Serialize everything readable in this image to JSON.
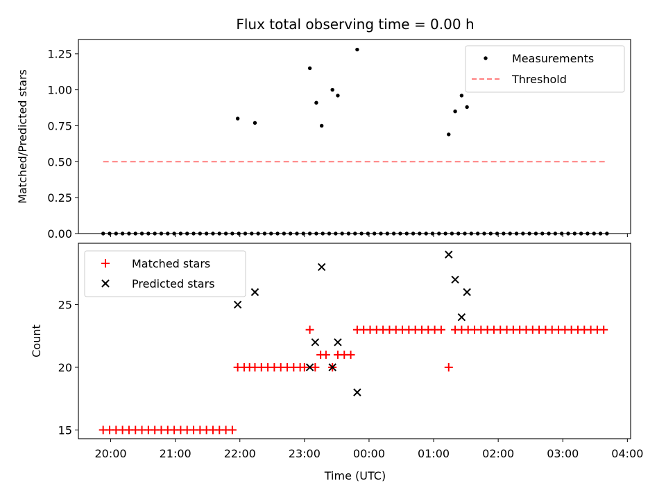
{
  "chart_data": [
    {
      "type": "scatter",
      "title": "Flux total observing time = 0.00 h",
      "ylabel": "Matched/Predicted stars",
      "xlabel": "",
      "ylim": [
        0,
        1.35
      ],
      "yticks": [
        "0.00",
        "0.25",
        "0.50",
        "0.75",
        "1.00",
        "1.25"
      ],
      "ytick_values": [
        0,
        0.25,
        0.5,
        0.75,
        1.0,
        1.25
      ],
      "grid": false,
      "legend_position": "top-right",
      "series": [
        {
          "name": "Measurements",
          "marker": "dot",
          "color": "#000000",
          "x": [
            "19:53",
            "19:59",
            "20:05",
            "20:11",
            "20:17",
            "20:23",
            "20:29",
            "20:35",
            "20:41",
            "20:47",
            "20:53",
            "20:59",
            "21:05",
            "21:11",
            "21:17",
            "21:23",
            "21:29",
            "21:35",
            "21:41",
            "21:47",
            "21:53",
            "21:59",
            "22:05",
            "22:11",
            "22:17",
            "22:23",
            "22:29",
            "22:35",
            "22:41",
            "22:47",
            "22:53",
            "22:59",
            "23:05",
            "23:11",
            "23:17",
            "23:23",
            "23:29",
            "23:35",
            "23:41",
            "23:47",
            "23:53",
            "23:59",
            "00:05",
            "00:11",
            "00:17",
            "00:23",
            "00:29",
            "00:35",
            "00:41",
            "00:47",
            "00:53",
            "00:59",
            "01:05",
            "01:11",
            "01:17",
            "01:23",
            "01:29",
            "01:35",
            "01:41",
            "01:47",
            "01:53",
            "01:59",
            "02:05",
            "02:11",
            "02:17",
            "02:23",
            "02:29",
            "02:35",
            "02:41",
            "02:47",
            "02:53",
            "02:59",
            "03:05",
            "03:11",
            "03:17",
            "03:23",
            "03:29",
            "03:35",
            "03:41",
            "21:58",
            "22:14",
            "23:05",
            "23:11",
            "23:16",
            "23:26",
            "23:31",
            "23:49",
            "01:14",
            "01:20",
            "01:26",
            "01:31"
          ],
          "y": [
            0,
            0,
            0,
            0,
            0,
            0,
            0,
            0,
            0,
            0,
            0,
            0,
            0,
            0,
            0,
            0,
            0,
            0,
            0,
            0,
            0,
            0,
            0,
            0,
            0,
            0,
            0,
            0,
            0,
            0,
            0,
            0,
            0,
            0,
            0,
            0,
            0,
            0,
            0,
            0,
            0,
            0,
            0,
            0,
            0,
            0,
            0,
            0,
            0,
            0,
            0,
            0,
            0,
            0,
            0,
            0,
            0,
            0,
            0,
            0,
            0,
            0,
            0,
            0,
            0,
            0,
            0,
            0,
            0,
            0,
            0,
            0,
            0,
            0,
            0,
            0,
            0,
            0,
            0,
            0.8,
            0.77,
            1.15,
            0.91,
            0.75,
            1.0,
            0.96,
            1.28,
            0.69,
            0.85,
            0.96,
            0.88
          ]
        },
        {
          "name": "Threshold",
          "style": "dashed",
          "color": "#ff7f7f",
          "x": [
            "19:53",
            "03:41"
          ],
          "y": [
            0.5,
            0.5
          ]
        }
      ]
    },
    {
      "type": "scatter",
      "title": "",
      "ylabel": "Count",
      "xlabel": "Time (UTC)",
      "ylim": [
        14.3,
        29.9
      ],
      "yticks": [
        "15",
        "20",
        "25"
      ],
      "ytick_values": [
        15,
        20,
        25
      ],
      "xticks": [
        "20:00",
        "21:00",
        "22:00",
        "23:00",
        "00:00",
        "01:00",
        "02:00",
        "03:00",
        "04:00"
      ],
      "xlim": [
        "19:30",
        "04:03"
      ],
      "grid": false,
      "legend_position": "top-left",
      "series": [
        {
          "name": "Matched stars",
          "marker": "plus",
          "color": "#ff0000",
          "x": [
            "19:53",
            "19:59",
            "20:05",
            "20:11",
            "20:17",
            "20:23",
            "20:29",
            "20:35",
            "20:41",
            "20:47",
            "20:53",
            "20:59",
            "21:05",
            "21:11",
            "21:17",
            "21:23",
            "21:29",
            "21:35",
            "21:41",
            "21:47",
            "21:53",
            "21:58",
            "22:04",
            "22:09",
            "22:14",
            "22:20",
            "22:26",
            "22:32",
            "22:38",
            "22:44",
            "22:50",
            "22:56",
            "23:00",
            "23:05",
            "23:10",
            "23:15",
            "23:20",
            "23:26",
            "23:31",
            "23:37",
            "23:43",
            "23:49",
            "23:55",
            "00:01",
            "00:07",
            "00:13",
            "00:19",
            "00:25",
            "00:31",
            "00:37",
            "00:43",
            "00:49",
            "00:55",
            "01:01",
            "01:07",
            "01:14",
            "01:20",
            "01:26",
            "01:32",
            "01:38",
            "01:44",
            "01:50",
            "01:56",
            "02:02",
            "02:08",
            "02:14",
            "02:20",
            "02:26",
            "02:32",
            "02:38",
            "02:44",
            "02:50",
            "02:56",
            "03:02",
            "03:08",
            "03:14",
            "03:20",
            "03:26",
            "03:32",
            "03:38"
          ],
          "y": [
            15,
            15,
            15,
            15,
            15,
            15,
            15,
            15,
            15,
            15,
            15,
            15,
            15,
            15,
            15,
            15,
            15,
            15,
            15,
            15,
            15,
            20,
            20,
            20,
            20,
            20,
            20,
            20,
            20,
            20,
            20,
            20,
            20,
            23,
            20,
            21,
            21,
            20,
            21,
            21,
            21,
            23,
            23,
            23,
            23,
            23,
            23,
            23,
            23,
            23,
            23,
            23,
            23,
            23,
            23,
            20,
            23,
            23,
            23,
            23,
            23,
            23,
            23,
            23,
            23,
            23,
            23,
            23,
            23,
            23,
            23,
            23,
            23,
            23,
            23,
            23,
            23,
            23,
            23,
            23
          ]
        },
        {
          "name": "Predicted stars",
          "marker": "x",
          "color": "#000000",
          "x": [
            "21:58",
            "22:14",
            "23:05",
            "23:10",
            "23:16",
            "23:26",
            "23:31",
            "23:49",
            "01:14",
            "01:20",
            "01:26",
            "01:31"
          ],
          "y": [
            25,
            26,
            20,
            22,
            28,
            20,
            22,
            18,
            29,
            27,
            24,
            26
          ]
        }
      ]
    }
  ]
}
